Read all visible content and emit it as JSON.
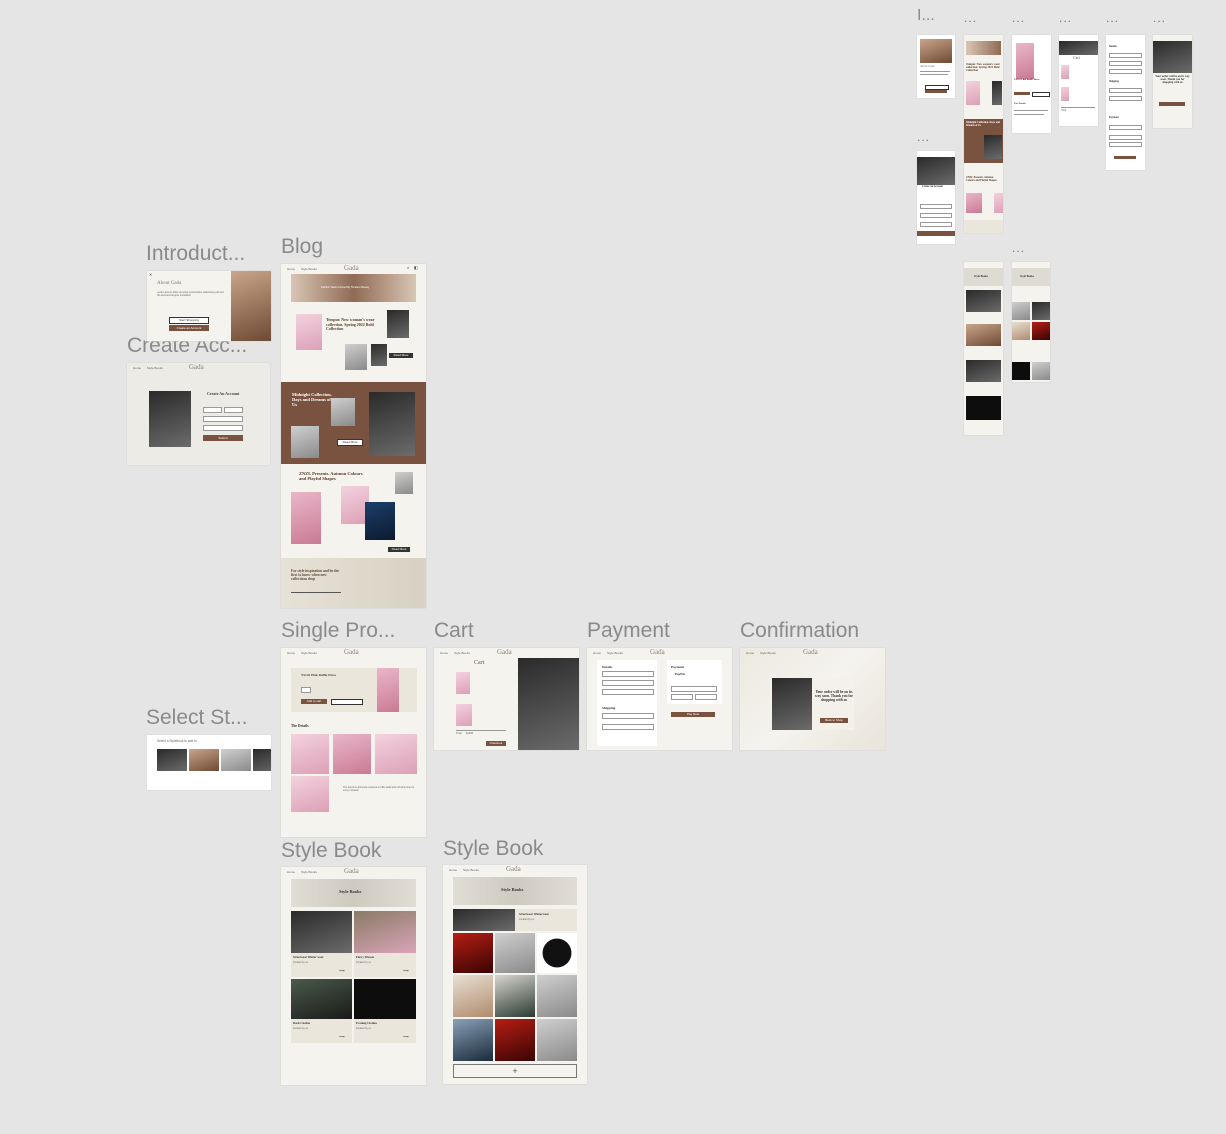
{
  "labels": {
    "introduction": "Introduct...",
    "blog": "Blog",
    "create_account": "Create Acc...",
    "single_product": "Single Pro...",
    "cart": "Cart",
    "payment": "Payment",
    "confirmation": "Confirmation",
    "select_style": "Select St...",
    "style_book_1": "Style Book",
    "style_book_2": "Style Book",
    "mobile_first": "I...",
    "mobile_more": "..."
  },
  "brand": "Gada",
  "colors": {
    "canvas": "#e5e5e5",
    "frame": "#f4f3ee",
    "accent": "#7a5240"
  },
  "nav": {
    "home": "Home",
    "style_books": "Style Books"
  },
  "intro": {
    "title": "About Gada",
    "body": "Lorem ipsum dolor sit amet consectetur adipiscing elit sed do eiusmod tempor incididunt",
    "start_btn": "Start Shopping",
    "create_btn": "Create an Account"
  },
  "create_account": {
    "title": "Create An Account",
    "submit": "Submit"
  },
  "blog": {
    "hero_text": "Fashion Week Inspired By Timeless Beauty",
    "post1_title": "Tempur. New woman's wear collection. Spring 2022 Bold Collection",
    "post2_title": "Midnight Collection. Days and Dreams of Us",
    "post3_title": "ZNZL Presents. Autumn Colours and Playful Shapes",
    "newsletter": "For style inspiration and be the first to know when new collections drop",
    "read_more": "Read More"
  },
  "single_product": {
    "title": "YSOO Pink Ruffle Dress",
    "add_to_cart": "Add to cart",
    "details": "The Details",
    "desc": "The feminine silhouette features a ruffle detail and soft pink tone for every occasion"
  },
  "cart": {
    "title": "Cart",
    "checkout": "Checkout",
    "total_label": "Total",
    "total": "$1480"
  },
  "payment": {
    "details": "Details",
    "shipping": "Shipping",
    "payment": "Payment",
    "paypal": "PayPal",
    "pay_btn": "Pay Now"
  },
  "confirmation": {
    "message": "Your order will be on its way soon. Thank you for shopping with us",
    "btn": "Back to Shop"
  },
  "select_style": {
    "title": "Select a Stylebook to add to"
  },
  "style_book": {
    "header": "Style Books",
    "items": [
      {
        "title": "Streetwear Winter wear",
        "sub": "Curated by us"
      },
      {
        "title": "Flowy Dresses",
        "sub": "Curated by us"
      },
      {
        "title": "Dark Clothes",
        "sub": "Curated by us"
      },
      {
        "title": "Evening Clothes",
        "sub": "Curated by us"
      }
    ],
    "detail_title": "Streetwear Winterwear",
    "detail_sub": "Curated by us",
    "add": "+"
  }
}
